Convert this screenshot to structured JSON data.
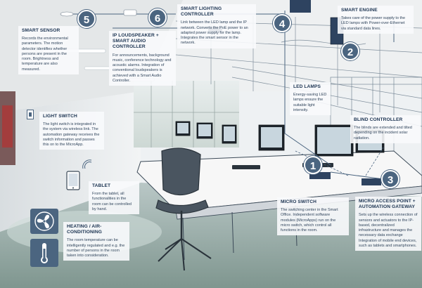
{
  "colors": {
    "accent": "#4b6580",
    "box_bg": "#f6f8fa",
    "text": "#1f3550"
  },
  "badges": [
    "1",
    "2",
    "3",
    "4",
    "5",
    "6"
  ],
  "items": {
    "smart_sensor": {
      "title": "SMART SENSOR",
      "desc": "Records the environmental parameters. The motion detector identifies whether persons are present in the room. Brightness and temperature are also measured."
    },
    "ip_loudspeaker": {
      "title_line1": "IP LOUDSPEAKER +",
      "title_line2": "SMART AUDIO CONTROLLER",
      "desc": "For announcements, background music, conference technology and acoustic alarms. Integration of conventional loudspeakers is achieved with a Smart Audio Controller."
    },
    "smart_lighting": {
      "title": "SMART LIGHTING CONTROLLER",
      "desc": "Link between the LED lamp and the IP network. Converts the PoE power to an adapted power supply for the lamp. Integrates the smart sensor in the network."
    },
    "smart_engine": {
      "title": "SMART ENGINE",
      "desc": "Takes care of the power supply to the LED lamps with Power-over-Ethernet via standard data lines."
    },
    "led_lamps": {
      "title": "LED LAMPS",
      "desc": "Energy-saving LED lamps ensure the suitable light intensity."
    },
    "light_switch": {
      "title": "LIGHT SWITCH",
      "desc": "The light switch is integrated in the system via wireless link. The automation gateway receives the switch information and passes this on to the MicroApp."
    },
    "blind_controller": {
      "title": "BLIND CONTROLLER",
      "desc": "The blinds are extended and tilted depending on the incident solar radiation."
    },
    "tablet": {
      "title": "TABLET",
      "desc": "From the tablet, all functionalities in the room can be controlled by hand."
    },
    "heating": {
      "title": "HEATING / AIR-CONDITIONING",
      "desc": "The room temperature can be intelligently regulated and e.g. the number of persons in the room taken into consideration."
    },
    "micro_switch": {
      "title": "MICRO SWITCH",
      "desc": "The switching center in the Smart Office. Independent software modules (MicroApps) run on the micro switch, which control all functions in the room."
    },
    "micro_access": {
      "title_line1": "MICRO ACCESS POINT +",
      "title_line2": "AUTOMATION GATEWAY",
      "desc": "Sets up the wireless connection of sensors and actuators to the IP-based, decentralized infrastructure and manages the necessary data exchange Integration of mobile end devices, such as tablets and smartphones."
    }
  }
}
